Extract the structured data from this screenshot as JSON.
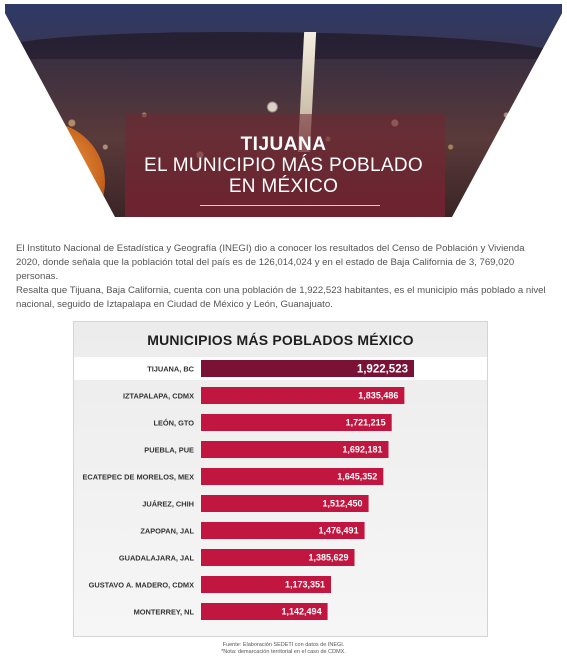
{
  "hero": {
    "title_bold": "TIJUANA",
    "title_line2": "EL MUNICIPIO MÁS POBLADO",
    "title_line3": "EN MÉXICO"
  },
  "paragraphs": {
    "p1": "El Instituto Nacional de Estadística y Geografía (INEGI) dio a conocer los resultados del Censo de Población y Vivienda 2020, donde señala que la población total del país es de 126,014,024 y en el estado de Baja California de 3, 769,020 personas.",
    "p2": "Resalta que Tijuana, Baja California, cuenta con una población de 1,922,523 habitantes, es el municipio más poblado a nivel nacional, seguido de Iztapalapa en Ciudad de México y León, Guanajuato."
  },
  "colors": {
    "highlight_bar": "#7a1236",
    "bar": "#c0163f",
    "highlight_bg": "#ffffff"
  },
  "chart_data": {
    "type": "bar",
    "orientation": "horizontal",
    "title": "MUNICIPIOS MÁS POBLADOS MÉXICO",
    "categories": [
      "TIJUANA, BC",
      "IZTAPALAPA, CDMX",
      "LEÓN, GTO",
      "PUEBLA, PUE",
      "ECATEPEC DE MORELOS, MEX",
      "JUÁREZ, CHIH",
      "ZAPOPAN, JAL",
      "GUADALAJARA, JAL",
      "GUSTAVO A. MADERO, CDMX",
      "MONTERREY, NL"
    ],
    "values": [
      1922523,
      1835486,
      1721215,
      1692181,
      1645352,
      1512450,
      1476491,
      1385629,
      1173351,
      1142494
    ],
    "value_labels": [
      "1,922,523",
      "1,835,486",
      "1,721,215",
      "1,692,181",
      "1,645,352",
      "1,512,450",
      "1,476,491",
      "1,385,629",
      "1,173,351",
      "1,142,494"
    ],
    "xlabel": "",
    "ylabel": "",
    "grid": false,
    "legend": "none"
  },
  "source": {
    "line1": "Fuente: Elaboración SEDETI con datos de INEGI.",
    "line2": "*Nota: demarcación territorial en el caso de CDMX."
  }
}
